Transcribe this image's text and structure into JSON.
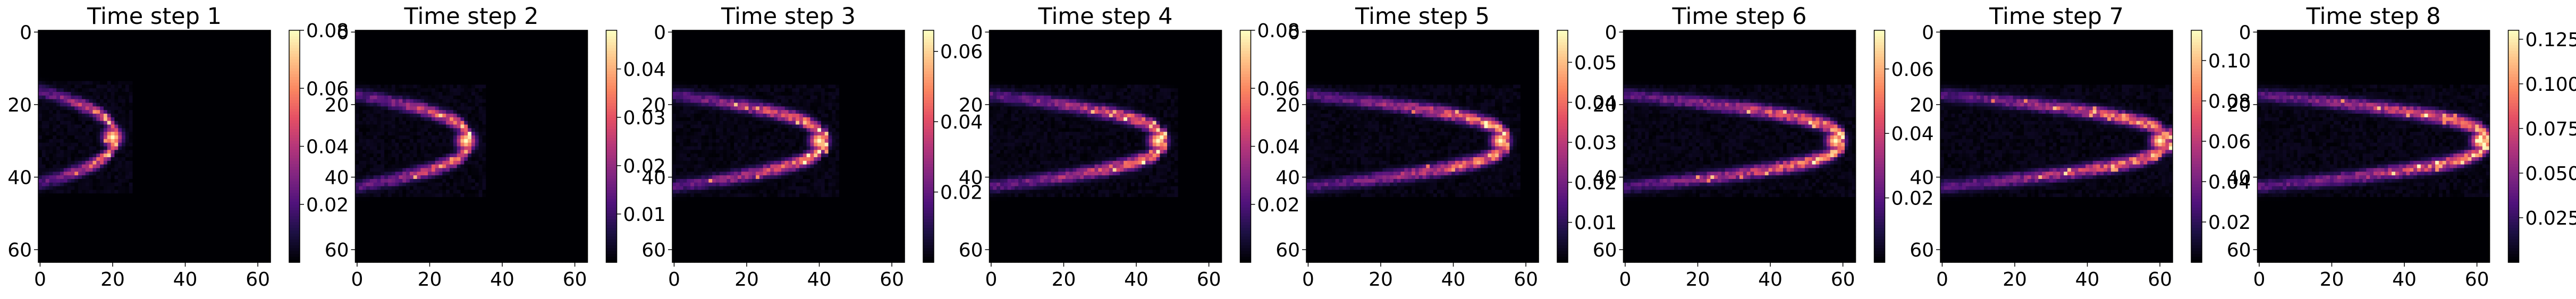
{
  "figure": {
    "colormap": [
      "#000004",
      "#1c1044",
      "#4f127b",
      "#812581",
      "#b5367a",
      "#e55064",
      "#fb8761",
      "#fec287",
      "#fcfdbf"
    ]
  },
  "chart_data": [
    {
      "type": "heatmap",
      "title": "Time step 1",
      "xlim": [
        0,
        63
      ],
      "ylim": [
        63,
        0
      ],
      "xticks": [
        0,
        20,
        40,
        60
      ],
      "yticks": [
        0,
        20,
        40,
        60
      ],
      "colorbar": {
        "min": 0,
        "max": 0.08,
        "ticks": [
          "0.02",
          "0.04",
          "0.06",
          "0.08"
        ]
      },
      "front_x": 20,
      "front_y": 29,
      "peak": 0.08
    },
    {
      "type": "heatmap",
      "title": "Time step 2",
      "xlim": [
        0,
        63
      ],
      "ylim": [
        63,
        0
      ],
      "xticks": [
        0,
        20,
        40,
        60
      ],
      "yticks": [
        0,
        20,
        40,
        60
      ],
      "colorbar": {
        "min": 0,
        "max": 0.048,
        "ticks": [
          "0.01",
          "0.02",
          "0.03",
          "0.04"
        ]
      },
      "front_x": 30,
      "front_y": 30,
      "peak": 0.048
    },
    {
      "type": "heatmap",
      "title": "Time step 3",
      "xlim": [
        0,
        63
      ],
      "ylim": [
        63,
        0
      ],
      "xticks": [
        0,
        20,
        40,
        60
      ],
      "yticks": [
        0,
        20,
        40,
        60
      ],
      "colorbar": {
        "min": 0,
        "max": 0.066,
        "ticks": [
          "0.02",
          "0.04",
          "0.06"
        ]
      },
      "front_x": 40,
      "front_y": 30,
      "peak": 0.066
    },
    {
      "type": "heatmap",
      "title": "Time step 4",
      "xlim": [
        0,
        63
      ],
      "ylim": [
        63,
        0
      ],
      "xticks": [
        0,
        20,
        40,
        60
      ],
      "yticks": [
        0,
        20,
        40,
        60
      ],
      "colorbar": {
        "min": 0,
        "max": 0.08,
        "ticks": [
          "0.02",
          "0.04",
          "0.06",
          "0.08"
        ]
      },
      "front_x": 46,
      "front_y": 30,
      "peak": 0.08
    },
    {
      "type": "heatmap",
      "title": "Time step 5",
      "xlim": [
        0,
        63
      ],
      "ylim": [
        63,
        0
      ],
      "xticks": [
        0,
        20,
        40,
        60
      ],
      "yticks": [
        0,
        20,
        40,
        60
      ],
      "colorbar": {
        "min": 0,
        "max": 0.058,
        "ticks": [
          "0.01",
          "0.02",
          "0.03",
          "0.04",
          "0.05"
        ]
      },
      "front_x": 53,
      "front_y": 30,
      "peak": 0.058
    },
    {
      "type": "heatmap",
      "title": "Time step 6",
      "xlim": [
        0,
        63
      ],
      "ylim": [
        63,
        0
      ],
      "xticks": [
        0,
        20,
        40,
        60
      ],
      "yticks": [
        0,
        20,
        40,
        60
      ],
      "colorbar": {
        "min": 0,
        "max": 0.072,
        "ticks": [
          "0.02",
          "0.04",
          "0.06"
        ]
      },
      "front_x": 58,
      "front_y": 30,
      "peak": 0.072
    },
    {
      "type": "heatmap",
      "title": "Time step 7",
      "xlim": [
        0,
        63
      ],
      "ylim": [
        63,
        0
      ],
      "xticks": [
        0,
        20,
        40,
        60
      ],
      "yticks": [
        0,
        20,
        40,
        60
      ],
      "colorbar": {
        "min": 0,
        "max": 0.115,
        "ticks": [
          "0.02",
          "0.04",
          "0.06",
          "0.08",
          "0.10"
        ]
      },
      "front_x": 60,
      "front_y": 30,
      "peak": 0.115
    },
    {
      "type": "heatmap",
      "title": "Time step 8",
      "xlim": [
        0,
        63
      ],
      "ylim": [
        63,
        0
      ],
      "xticks": [
        0,
        20,
        40,
        60
      ],
      "yticks": [
        0,
        20,
        40,
        60
      ],
      "colorbar": {
        "min": 0,
        "max": 0.13,
        "ticks": [
          "0.025",
          "0.050",
          "0.075",
          "0.100",
          "0.125"
        ]
      },
      "front_x": 61,
      "front_y": 30,
      "peak": 0.13
    }
  ]
}
